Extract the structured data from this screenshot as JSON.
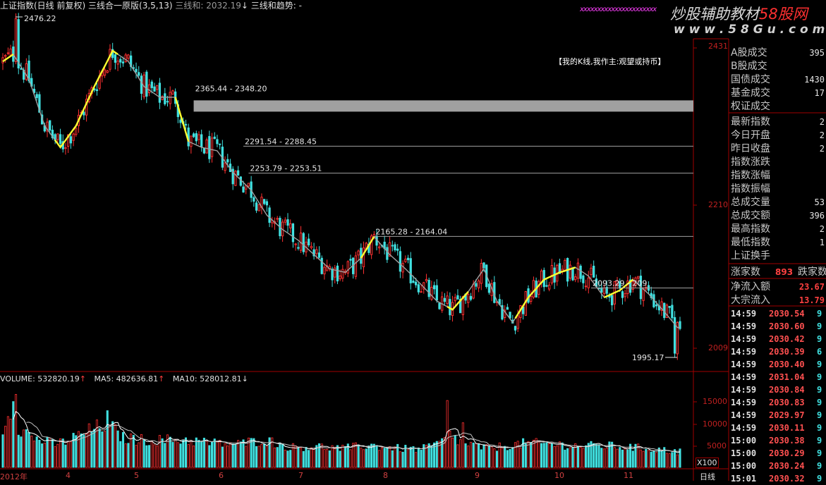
{
  "header": {
    "title": "上证指数(日线 前复权)",
    "indicator": "三线合一原版(3,5,13)",
    "indicator_value_label": "三线和: 2032.19",
    "arrow": "↓",
    "trend_label": "三线和趋势: -"
  },
  "watermark": {
    "line": "xxxxxxxxxxxxxxxxxxxxxx",
    "text1": "炒股辅助教材",
    "text2": "58股网",
    "url": "w w w . 5 8 G u . c o m"
  },
  "annotation_box": "【我的K线,我作主:观望或持币】",
  "price_axis": {
    "labels": [
      "2431",
      "2210",
      "2009"
    ],
    "values": [
      2431,
      2210,
      2009
    ]
  },
  "volume_axis": {
    "labels": [
      "15000",
      "10000",
      "5000"
    ],
    "multiplier": "X100"
  },
  "date_axis": {
    "labels": [
      "2012年",
      "4",
      "5",
      "6",
      "7",
      "8",
      "9",
      "10",
      "11"
    ],
    "period": "日线"
  },
  "volume_header": {
    "volume": "VOLUME: 532820.19",
    "volume_arrow": "↑",
    "ma5": "MA5: 482636.81",
    "ma5_arrow": "↑",
    "ma10": "MA10: 528012.81",
    "ma10_arrow": "↓"
  },
  "right_panel": {
    "group1": [
      {
        "label": "A股成交",
        "value": "395"
      },
      {
        "label": "B股成交",
        "value": ""
      },
      {
        "label": "国债成交",
        "value": "1430"
      },
      {
        "label": "基金成交",
        "value": "17"
      },
      {
        "label": "权证成交",
        "value": ""
      }
    ],
    "group2": [
      {
        "label": "最新指数",
        "value": "2"
      },
      {
        "label": "今日开盘",
        "value": "2"
      },
      {
        "label": "昨日收盘",
        "value": "2"
      },
      {
        "label": "指数涨跌",
        "value": ""
      },
      {
        "label": "指数涨幅",
        "value": ""
      },
      {
        "label": "指数振幅",
        "value": ""
      },
      {
        "label": "总成交量",
        "value": "53"
      },
      {
        "label": "总成交额",
        "value": "396"
      },
      {
        "label": "最高指数",
        "value": "2"
      },
      {
        "label": "最低指数",
        "value": "1"
      },
      {
        "label": "上证换手",
        "value": ""
      }
    ],
    "breadth": {
      "up_label": "涨家数",
      "up_value": "893",
      "down_label": "跌家数"
    },
    "flows": [
      {
        "label": "净流入额",
        "value": "23.67"
      },
      {
        "label": "大宗流入",
        "value": "13.79"
      }
    ],
    "ticks": [
      {
        "time": "14:59",
        "price": "2030.54",
        "vol": "9"
      },
      {
        "time": "14:59",
        "price": "2030.60",
        "vol": "9"
      },
      {
        "time": "14:59",
        "price": "2030.42",
        "vol": "9"
      },
      {
        "time": "14:59",
        "price": "2030.39",
        "vol": "6"
      },
      {
        "time": "14:59",
        "price": "2030.40",
        "vol": "9"
      },
      {
        "time": "14:59",
        "price": "2031.04",
        "vol": "9"
      },
      {
        "time": "14:59",
        "price": "2030.84",
        "vol": "9"
      },
      {
        "time": "14:59",
        "price": "2030.83",
        "vol": "9"
      },
      {
        "time": "14:59",
        "price": "2029.97",
        "vol": "9"
      },
      {
        "time": "14:59",
        "price": "2030.11",
        "vol": "9"
      },
      {
        "time": "15:00",
        "price": "2030.38",
        "vol": "9"
      },
      {
        "time": "15:00",
        "price": "2030.29",
        "vol": "9"
      },
      {
        "time": "15:00",
        "price": "2030.24",
        "vol": "9"
      },
      {
        "time": "15:01",
        "price": "2030.32",
        "vol": "9"
      }
    ]
  },
  "colors": {
    "up": "#ff3030",
    "down": "#40e0e0",
    "ma_gray": "#a0a0a0",
    "ma_yellow": "#ffff30",
    "frame": "#a00000",
    "band": "#a0a0a0",
    "wm_pink": "#ff40ff",
    "wm_white": "#d0d0d0"
  },
  "chart_data": {
    "type": "candlestick",
    "price_range": [
      1995.17,
      2476.22
    ],
    "max_label": "2476.22",
    "min_label": "1995.17",
    "max_value": 2476.22,
    "min_value": 1995.17,
    "ma_anchors": [
      [
        0,
        2410
      ],
      [
        4,
        2420
      ],
      [
        10,
        2385
      ],
      [
        16,
        2320
      ],
      [
        22,
        2290
      ],
      [
        28,
        2320
      ],
      [
        35,
        2375
      ],
      [
        42,
        2425
      ],
      [
        48,
        2410
      ],
      [
        54,
        2375
      ],
      [
        60,
        2360
      ],
      [
        66,
        2360
      ],
      [
        71,
        2298
      ],
      [
        76,
        2290
      ],
      [
        82,
        2285
      ],
      [
        88,
        2255
      ],
      [
        95,
        2230
      ],
      [
        101,
        2195
      ],
      [
        107,
        2175
      ],
      [
        113,
        2160
      ],
      [
        119,
        2140
      ],
      [
        125,
        2120
      ],
      [
        131,
        2115
      ],
      [
        137,
        2135
      ],
      [
        142,
        2165
      ],
      [
        148,
        2140
      ],
      [
        154,
        2120
      ],
      [
        160,
        2098
      ],
      [
        166,
        2075
      ],
      [
        172,
        2063
      ],
      [
        178,
        2088
      ],
      [
        184,
        2120
      ],
      [
        189,
        2075
      ],
      [
        195,
        2045
      ],
      [
        201,
        2080
      ],
      [
        207,
        2105
      ],
      [
        213,
        2115
      ],
      [
        219,
        2122
      ],
      [
        224,
        2110
      ],
      [
        230,
        2080
      ],
      [
        236,
        2090
      ],
      [
        241,
        2105
      ],
      [
        247,
        2085
      ],
      [
        253,
        2060
      ],
      [
        258,
        2038
      ]
    ],
    "yellow_segments": [
      [
        0,
        4
      ],
      [
        20,
        44
      ],
      [
        66,
        71
      ],
      [
        137,
        142
      ],
      [
        170,
        178
      ],
      [
        196,
        219
      ],
      [
        230,
        241
      ]
    ],
    "bands": [
      {
        "label": "2365.44 - 2348.20",
        "high": 2365.44,
        "low": 2348.2,
        "start": 73,
        "style": "filled"
      },
      {
        "label": "2291.54 - 2288.45",
        "high": 2291.54,
        "low": 2288.45,
        "start": 92,
        "style": "line"
      },
      {
        "label": "2253.79 - 2253.51",
        "high": 2253.79,
        "low": 2253.51,
        "start": 94,
        "style": "line"
      },
      {
        "label": "2165.28 - 2164.04",
        "high": 2165.28,
        "low": 2164.04,
        "start": 142,
        "style": "line"
      },
      {
        "label": "2093.29 - 209",
        "high": 2093.29,
        "low": 2092.8,
        "start": 225,
        "style": "line"
      }
    ],
    "volume_range": [
      0,
      20000
    ],
    "volume_anchors": [
      [
        0,
        9500
      ],
      [
        5,
        18000
      ],
      [
        6,
        9500
      ],
      [
        12,
        7000
      ],
      [
        20,
        5500
      ],
      [
        25,
        6500
      ],
      [
        34,
        9000
      ],
      [
        40,
        10500
      ],
      [
        46,
        7000
      ],
      [
        55,
        6500
      ],
      [
        70,
        6600
      ],
      [
        80,
        5800
      ],
      [
        90,
        5600
      ],
      [
        100,
        6600
      ],
      [
        110,
        4800
      ],
      [
        120,
        5000
      ],
      [
        130,
        4500
      ],
      [
        140,
        5300
      ],
      [
        150,
        4600
      ],
      [
        160,
        4300
      ],
      [
        168,
        6000
      ],
      [
        170,
        8500
      ],
      [
        175,
        6000
      ],
      [
        185,
        4500
      ],
      [
        193,
        5200
      ],
      [
        200,
        5800
      ],
      [
        210,
        5600
      ],
      [
        220,
        5100
      ],
      [
        230,
        5200
      ],
      [
        240,
        4800
      ],
      [
        250,
        4300
      ],
      [
        258,
        3800
      ]
    ],
    "volume_spikes": [
      [
        5,
        18000
      ],
      [
        40,
        14000
      ],
      [
        170,
        16500
      ],
      [
        176,
        11000
      ]
    ]
  }
}
